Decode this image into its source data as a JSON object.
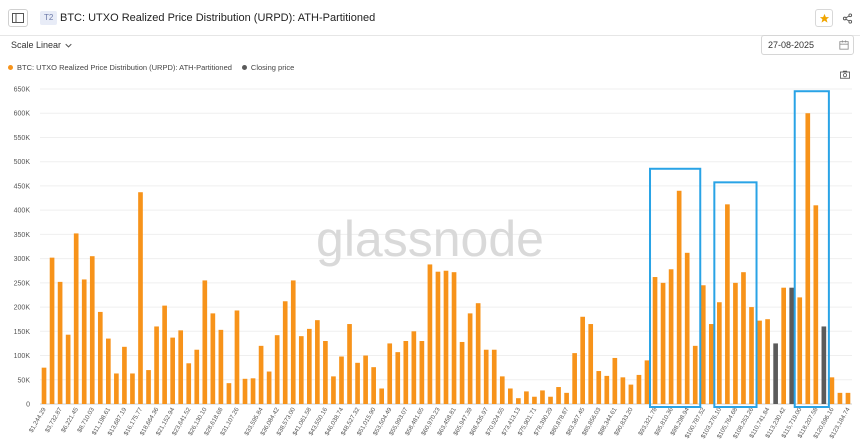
{
  "header": {
    "tier_badge": "T2",
    "title": "BTC: UTXO Realized Price Distribution (URPD): ATH-Partitioned"
  },
  "controls": {
    "scale_label": "Scale Linear",
    "date_value": "27-08-2025"
  },
  "legend": {
    "series_label": "BTC: UTXO Realized Price Distribution (URPD): ATH-Partitioned",
    "closing_label": "Closing price"
  },
  "colors": {
    "bar": "#f7931a",
    "closing_bar": "#5b5b5b",
    "highlight_box": "#29a3e6",
    "watermark": "#d9d9d9"
  },
  "watermark": "glassnode",
  "chart_data": {
    "type": "bar",
    "title": "BTC: UTXO Realized Price Distribution (URPD): ATH-Partitioned",
    "ylim": [
      0,
      650000
    ],
    "y_ticks": [
      0,
      50000,
      100000,
      150000,
      200000,
      250000,
      300000,
      350000,
      400000,
      450000,
      500000,
      550000,
      600000,
      650000
    ],
    "y_tick_labels": [
      "0",
      "50K",
      "100K",
      "150K",
      "200K",
      "250K",
      "300K",
      "350K",
      "400K",
      "450K",
      "500K",
      "550K",
      "600K",
      "650K"
    ],
    "x_tick_labels": [
      "$1,244.29",
      "$3,732.87",
      "$6,221.45",
      "$8,710.03",
      "$11,198.61",
      "$13,687.19",
      "$16,175.77",
      "$18,664.36",
      "$21,152.94",
      "$23,641.52",
      "$26,130.10",
      "$28,618.68",
      "$31,107.26",
      "$33,595.84",
      "$36,084.42",
      "$38,573.00",
      "$41,061.58",
      "$43,550.16",
      "$46,038.74",
      "$48,527.32",
      "$51,015.90",
      "$53,504.49",
      "$55,993.07",
      "$58,481.65",
      "$60,970.23",
      "$63,458.81",
      "$65,947.39",
      "$68,435.97",
      "$70,924.55",
      "$73,413.13",
      "$75,901.71",
      "$78,390.29",
      "$80,878.87",
      "$83,367.45",
      "$85,856.03",
      "$88,344.61",
      "$90,833.20",
      "$93,321.78",
      "$95,810.36",
      "$98,298.94",
      "$100,787.52",
      "$103,276.10",
      "$105,764.68",
      "$108,253.26",
      "$110,741.84",
      "$113,230.42",
      "$115,719.00",
      "$118,207.58",
      "$120,696.16",
      "$123,184.74"
    ],
    "values": [
      75000,
      302000,
      252000,
      143000,
      352000,
      257000,
      305000,
      190000,
      135000,
      63000,
      118000,
      63000,
      437000,
      70000,
      160000,
      203000,
      137000,
      152000,
      84000,
      112000,
      255000,
      187000,
      153000,
      43000,
      193000,
      52000,
      53000,
      120000,
      67000,
      142000,
      212000,
      255000,
      140000,
      155000,
      173000,
      130000,
      57000,
      98000,
      165000,
      85000,
      100000,
      76000,
      32000,
      125000,
      107000,
      130000,
      150000,
      130000,
      288000,
      273000,
      275000,
      272000,
      128000,
      187000,
      208000,
      112000,
      112000,
      57000,
      32000,
      12000,
      26000,
      15000,
      28000,
      15000,
      35000,
      23000,
      105000,
      180000,
      165000,
      68000,
      58000,
      95000,
      55000,
      40000,
      60000,
      90000,
      262000,
      250000,
      278000,
      440000,
      312000,
      120000,
      245000,
      165000,
      210000,
      412000,
      250000,
      272000,
      200000,
      172000,
      175000,
      125000,
      240000,
      240000,
      220000,
      600000,
      410000,
      160000,
      55000,
      23000,
      23000
    ],
    "closing_price_indices": [
      91,
      93,
      97
    ],
    "highlight_ranges": [
      [
        76,
        81
      ],
      [
        84,
        88
      ],
      [
        94,
        97
      ]
    ]
  }
}
